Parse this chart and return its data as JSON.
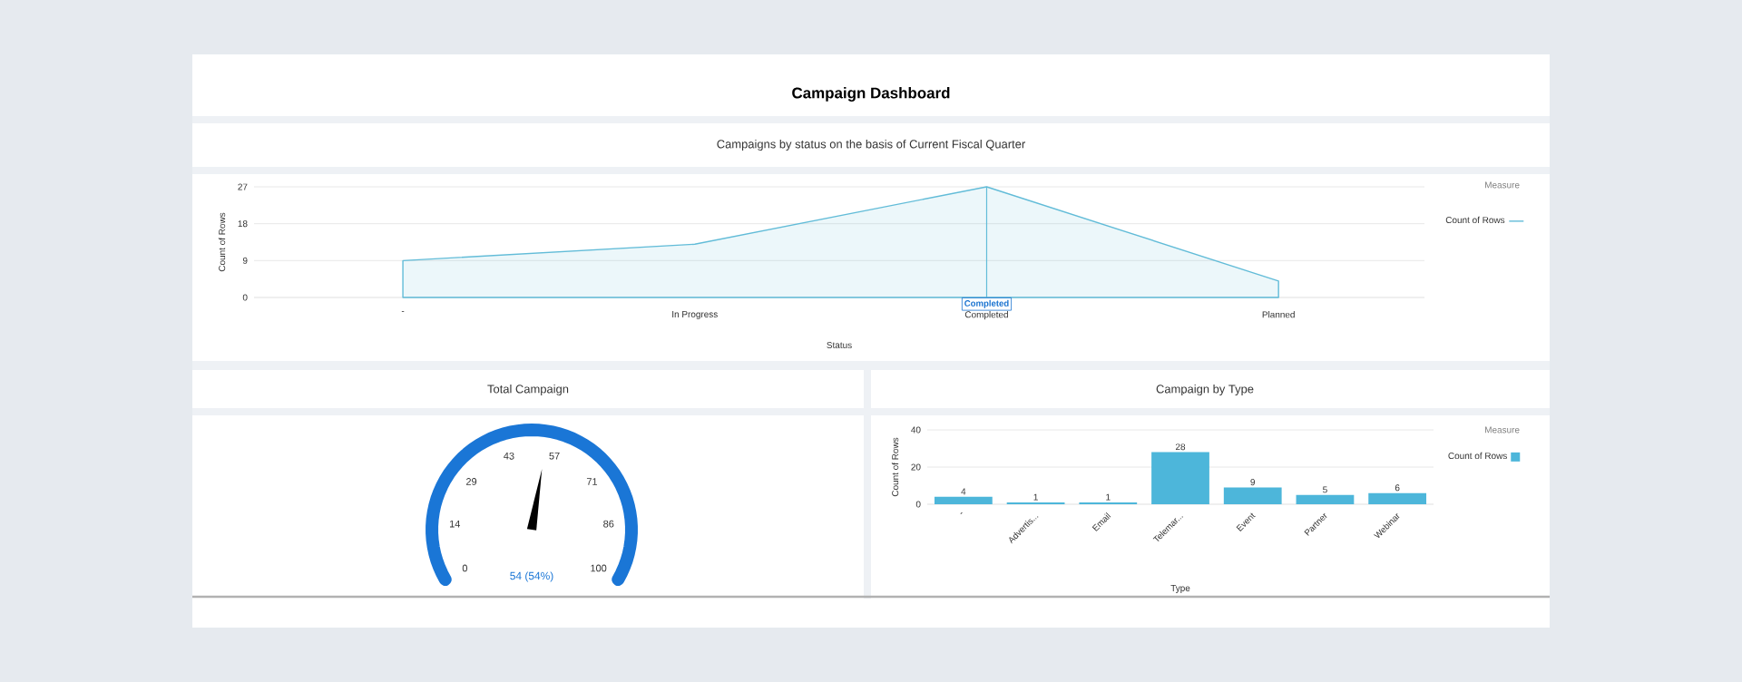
{
  "chart_data": [
    {
      "type": "other",
      "title": "Campaign Dashboard"
    },
    {
      "type": "area",
      "title": "Campaigns by status on the basis of Current Fiscal Quarter",
      "xlabel": "Status",
      "ylabel": "Count of Rows",
      "legend_title": "Measure",
      "categories": [
        "-",
        "In Progress",
        "Completed",
        "Planned"
      ],
      "series": [
        {
          "name": "Count of Rows",
          "color": "#62bcd8",
          "values": [
            9,
            13,
            27,
            4
          ]
        }
      ],
      "ylim": [
        0,
        27
      ],
      "yticks": [
        0,
        9,
        18,
        27
      ],
      "grid": "y",
      "legend": "top right",
      "annotations": [
        {
          "text": "Completed",
          "x": "Completed"
        }
      ]
    },
    {
      "type": "other",
      "title": "Total Campaign",
      "values": [
        54
      ],
      "value_labels": [
        "54 (54%)"
      ],
      "annotations": [
        "0",
        "14",
        "29",
        "43",
        "57",
        "71",
        "86",
        "100"
      ],
      "color": "#1a76d6"
    },
    {
      "type": "bar",
      "title": "Campaign by Type",
      "xlabel": "Type",
      "ylabel": "Count of Rows",
      "legend_title": "Measure",
      "categories": [
        "-",
        "Advertis...",
        "Email",
        "Telemar...",
        "Event",
        "Partner",
        "Webinar"
      ],
      "series": [
        {
          "name": "Count of Rows",
          "color": "#4db6da",
          "values": [
            4,
            1,
            1,
            28,
            9,
            5,
            6
          ]
        }
      ],
      "ylim": [
        0,
        40
      ],
      "yticks": [
        0,
        20,
        40
      ],
      "grid": "y",
      "legend": "top right",
      "data_labels": true
    }
  ]
}
